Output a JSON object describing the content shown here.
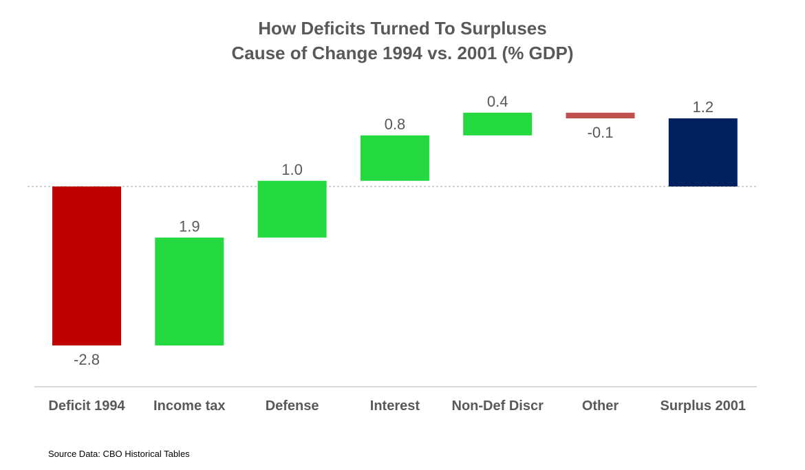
{
  "chart_data": {
    "type": "waterfall",
    "title": "How Deficits Turned To Surpluses",
    "subtitle": "Cause of Change 1994 vs. 2001 (% GDP)",
    "categories": [
      "Deficit 1994",
      "Income tax",
      "Defense",
      "Interest",
      "Non-Def Discr",
      "Other",
      "Surplus 2001"
    ],
    "values": [
      -2.8,
      1.9,
      1.0,
      0.8,
      0.4,
      -0.1,
      1.2
    ],
    "bar_kinds": [
      "total",
      "change",
      "change",
      "change",
      "change",
      "change",
      "total"
    ],
    "data_labels": [
      "-2.8",
      "1.9",
      "1.0",
      "0.8",
      "0.4",
      "-0.1",
      "1.2"
    ],
    "colors": {
      "deficit": "#C00000",
      "increase": "#24D83F",
      "decrease": "#C0504D",
      "surplus": "#002060",
      "axis": "#D9D9D9",
      "zero_line": "#A6A6A6",
      "text": "#595959"
    },
    "zero_line": "dashed",
    "grid": false
  },
  "source": "Source Data:  CBO Historical Tables"
}
